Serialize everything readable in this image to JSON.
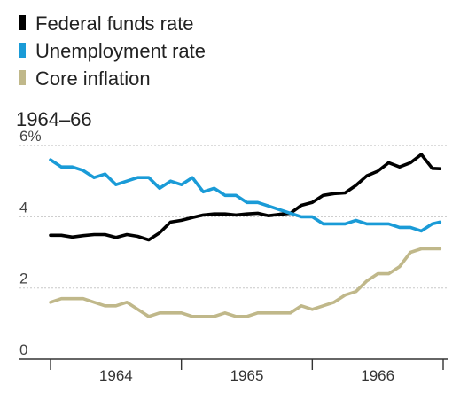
{
  "chart_data": {
    "type": "line",
    "subtitle": "1964–66",
    "legend_position": "top-left",
    "grid": true,
    "ylim": [
      0,
      6.5
    ],
    "yticks": [
      {
        "value": 0,
        "label": "0"
      },
      {
        "value": 2,
        "label": "2"
      },
      {
        "value": 4,
        "label": "4"
      },
      {
        "value": 6,
        "label": "6%"
      }
    ],
    "xlim": [
      0,
      36
    ],
    "xticks": [
      0,
      12,
      24,
      36
    ],
    "xlabels": [
      {
        "label": "1964",
        "at": 6
      },
      {
        "label": "1965",
        "at": 18
      },
      {
        "label": "1966",
        "at": 30
      }
    ],
    "series": [
      {
        "name": "Federal funds rate",
        "color": "#000000",
        "x": [
          0,
          1,
          2,
          3,
          4,
          5,
          6,
          7,
          8,
          9,
          10,
          11,
          12,
          13,
          14,
          15,
          16,
          17,
          18,
          19,
          20,
          21,
          22,
          23,
          24,
          25,
          26,
          27,
          28,
          29,
          30,
          31,
          32,
          33,
          34,
          35,
          35.7
        ],
        "values": [
          3.48,
          3.48,
          3.43,
          3.47,
          3.5,
          3.5,
          3.42,
          3.5,
          3.45,
          3.35,
          3.55,
          3.85,
          3.9,
          3.98,
          4.05,
          4.08,
          4.08,
          4.05,
          4.08,
          4.1,
          4.03,
          4.07,
          4.1,
          4.32,
          4.4,
          4.6,
          4.65,
          4.67,
          4.88,
          5.15,
          5.28,
          5.52,
          5.4,
          5.52,
          5.75,
          5.36,
          5.35
        ]
      },
      {
        "name": "Unemployment rate",
        "color": "#1a9bd7",
        "x": [
          0,
          1,
          2,
          3,
          4,
          5,
          6,
          7,
          8,
          9,
          10,
          11,
          12,
          13,
          14,
          15,
          16,
          17,
          18,
          19,
          20,
          21,
          22,
          23,
          24,
          25,
          26,
          27,
          28,
          29,
          30,
          31,
          32,
          33,
          34,
          35,
          35.7
        ],
        "values": [
          5.6,
          5.4,
          5.4,
          5.3,
          5.1,
          5.2,
          4.9,
          5.0,
          5.1,
          5.1,
          4.8,
          5.0,
          4.9,
          5.1,
          4.7,
          4.8,
          4.6,
          4.6,
          4.4,
          4.4,
          4.3,
          4.2,
          4.1,
          4.0,
          4.0,
          3.8,
          3.8,
          3.8,
          3.9,
          3.8,
          3.8,
          3.8,
          3.7,
          3.7,
          3.6,
          3.8,
          3.85
        ]
      },
      {
        "name": "Core inflation",
        "color": "#c0b88a",
        "x": [
          0,
          1,
          2,
          3,
          4,
          5,
          6,
          7,
          8,
          9,
          10,
          11,
          12,
          13,
          14,
          15,
          16,
          17,
          18,
          19,
          20,
          21,
          22,
          23,
          24,
          25,
          26,
          27,
          28,
          29,
          30,
          31,
          32,
          33,
          34,
          35,
          35.7
        ],
        "values": [
          1.6,
          1.7,
          1.7,
          1.7,
          1.6,
          1.5,
          1.5,
          1.6,
          1.4,
          1.2,
          1.3,
          1.3,
          1.3,
          1.2,
          1.2,
          1.2,
          1.3,
          1.2,
          1.2,
          1.3,
          1.3,
          1.3,
          1.3,
          1.5,
          1.4,
          1.5,
          1.6,
          1.8,
          1.9,
          2.2,
          2.4,
          2.4,
          2.6,
          3.0,
          3.1,
          3.1,
          3.1
        ]
      }
    ]
  }
}
